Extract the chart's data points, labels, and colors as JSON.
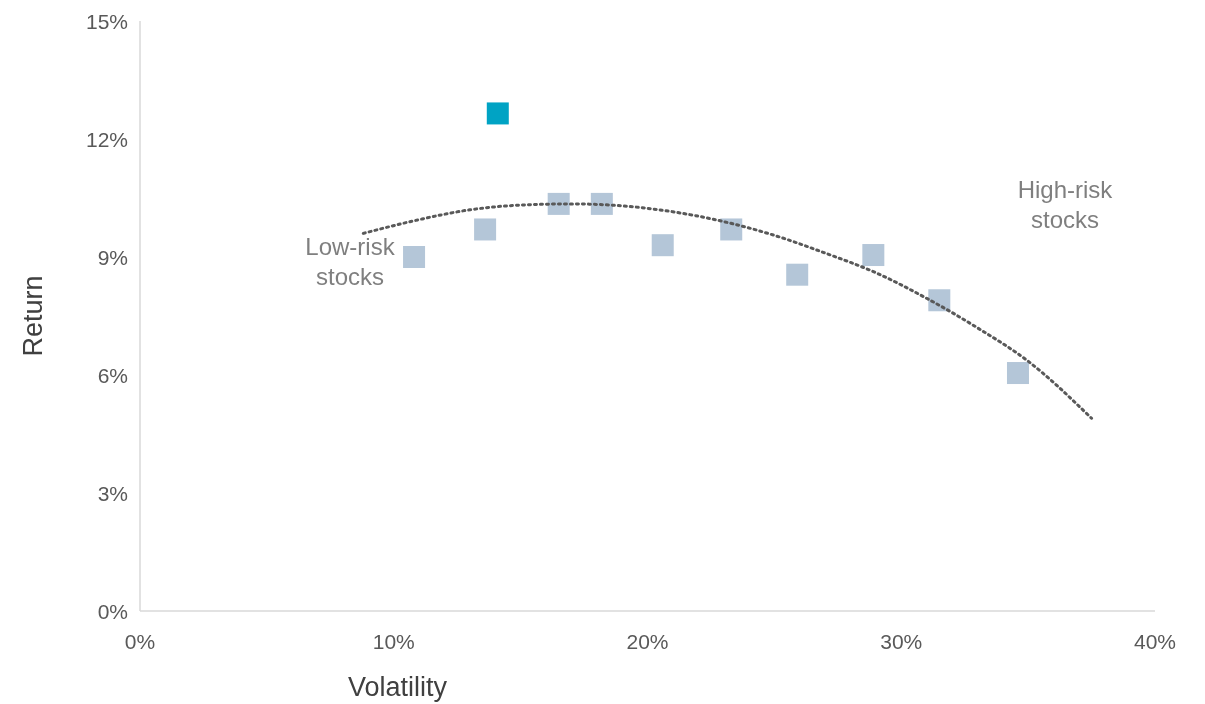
{
  "chart_data": {
    "type": "scatter",
    "xlabel": "Volatility",
    "ylabel": "Return",
    "marker": "square",
    "xlim": [
      0,
      40
    ],
    "xticks": [
      {
        "value": 0,
        "label": "0%"
      },
      {
        "value": 10,
        "label": "10%"
      },
      {
        "value": 20,
        "label": "20%"
      },
      {
        "value": 30,
        "label": "30%"
      },
      {
        "value": 40,
        "label": "40%"
      }
    ],
    "ylim": [
      0,
      15
    ],
    "yticks": [
      {
        "value": 0,
        "label": "0%"
      },
      {
        "value": 3,
        "label": "3%"
      },
      {
        "value": 6,
        "label": "6%"
      },
      {
        "value": 9,
        "label": "9%"
      },
      {
        "value": 12,
        "label": "12%"
      },
      {
        "value": 15,
        "label": "15%"
      }
    ],
    "grid": false,
    "series": [
      {
        "color": "#b4c6d8",
        "x": [
          10.8,
          13.6,
          16.5,
          18.2,
          20.6,
          23.3,
          25.9,
          28.9,
          31.5,
          34.6
        ],
        "values": [
          9.0,
          9.7,
          10.35,
          10.35,
          9.3,
          9.7,
          8.55,
          9.05,
          7.9,
          6.05
        ]
      },
      {
        "color": "#00a3c4",
        "x": [
          14.1
        ],
        "values": [
          12.65
        ]
      },
      {
        "type": "line",
        "color": "#595959",
        "line_style": "dotted",
        "marker": "none",
        "x": [
          8.8,
          11,
          13,
          15,
          17,
          19,
          21,
          23,
          25,
          27,
          29,
          31,
          33,
          35,
          37.5
        ],
        "values": [
          9.6,
          9.95,
          10.2,
          10.32,
          10.35,
          10.3,
          10.15,
          9.9,
          9.55,
          9.1,
          8.6,
          7.95,
          7.2,
          6.35,
          4.9
        ]
      }
    ],
    "annotations": [
      "Low-risk\nstocks",
      "High-risk\nstocks"
    ]
  }
}
